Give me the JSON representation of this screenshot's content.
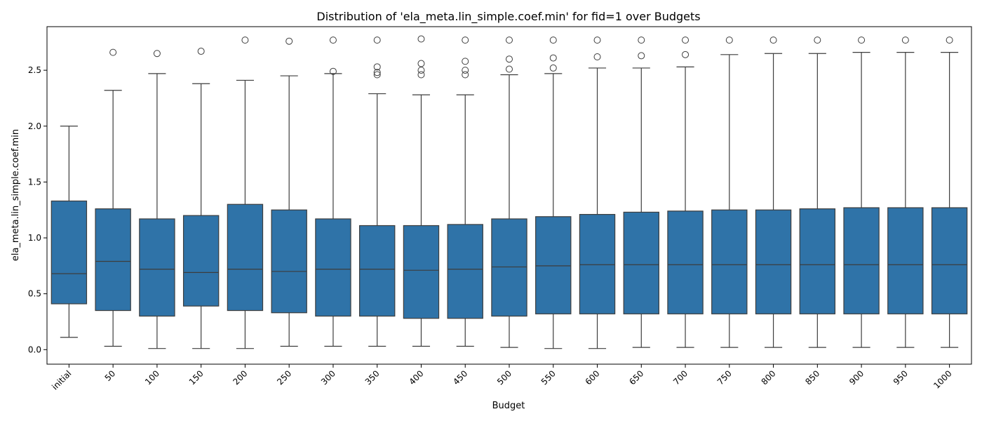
{
  "chart_data": {
    "type": "box",
    "title": "Distribution of 'ela_meta.lin_simple.coef.min' for fid=1 over Budgets",
    "xlabel": "Budget",
    "ylabel": "ela_meta.lin_simple.coef.min",
    "ylim": [
      -0.13,
      2.89
    ],
    "yticks": [
      0.0,
      0.5,
      1.0,
      1.5,
      2.0,
      2.5
    ],
    "ytick_labels": [
      "0.0",
      "0.5",
      "1.0",
      "1.5",
      "2.0",
      "2.5"
    ],
    "grid": false,
    "legend": "none",
    "box_color": "#2f73a8",
    "categories": [
      "initial",
      "50",
      "100",
      "150",
      "200",
      "250",
      "300",
      "350",
      "400",
      "450",
      "500",
      "550",
      "600",
      "650",
      "700",
      "750",
      "800",
      "850",
      "900",
      "950",
      "1000"
    ],
    "boxes": [
      {
        "whisker_low": 0.11,
        "q1": 0.41,
        "median": 0.68,
        "q3": 1.33,
        "whisker_high": 2.0,
        "outliers": []
      },
      {
        "whisker_low": 0.03,
        "q1": 0.35,
        "median": 0.79,
        "q3": 1.26,
        "whisker_high": 2.32,
        "outliers": [
          2.66
        ]
      },
      {
        "whisker_low": 0.01,
        "q1": 0.3,
        "median": 0.72,
        "q3": 1.17,
        "whisker_high": 2.47,
        "outliers": [
          2.65
        ]
      },
      {
        "whisker_low": 0.01,
        "q1": 0.39,
        "median": 0.69,
        "q3": 1.2,
        "whisker_high": 2.38,
        "outliers": [
          2.67
        ]
      },
      {
        "whisker_low": 0.01,
        "q1": 0.35,
        "median": 0.72,
        "q3": 1.3,
        "whisker_high": 2.41,
        "outliers": [
          2.77
        ]
      },
      {
        "whisker_low": 0.03,
        "q1": 0.33,
        "median": 0.7,
        "q3": 1.25,
        "whisker_high": 2.45,
        "outliers": [
          2.76
        ]
      },
      {
        "whisker_low": 0.03,
        "q1": 0.3,
        "median": 0.72,
        "q3": 1.17,
        "whisker_high": 2.47,
        "outliers": [
          2.49,
          2.77
        ]
      },
      {
        "whisker_low": 0.03,
        "q1": 0.3,
        "median": 0.72,
        "q3": 1.11,
        "whisker_high": 2.29,
        "outliers": [
          2.46,
          2.48,
          2.53,
          2.77
        ]
      },
      {
        "whisker_low": 0.03,
        "q1": 0.28,
        "median": 0.71,
        "q3": 1.11,
        "whisker_high": 2.28,
        "outliers": [
          2.46,
          2.5,
          2.56,
          2.78
        ]
      },
      {
        "whisker_low": 0.03,
        "q1": 0.28,
        "median": 0.72,
        "q3": 1.12,
        "whisker_high": 2.28,
        "outliers": [
          2.46,
          2.5,
          2.58,
          2.77
        ]
      },
      {
        "whisker_low": 0.02,
        "q1": 0.3,
        "median": 0.74,
        "q3": 1.17,
        "whisker_high": 2.46,
        "outliers": [
          2.51,
          2.6,
          2.77
        ]
      },
      {
        "whisker_low": 0.01,
        "q1": 0.32,
        "median": 0.75,
        "q3": 1.19,
        "whisker_high": 2.47,
        "outliers": [
          2.52,
          2.61,
          2.77
        ]
      },
      {
        "whisker_low": 0.01,
        "q1": 0.32,
        "median": 0.76,
        "q3": 1.21,
        "whisker_high": 2.52,
        "outliers": [
          2.62,
          2.77
        ]
      },
      {
        "whisker_low": 0.02,
        "q1": 0.32,
        "median": 0.76,
        "q3": 1.23,
        "whisker_high": 2.52,
        "outliers": [
          2.63,
          2.77
        ]
      },
      {
        "whisker_low": 0.02,
        "q1": 0.32,
        "median": 0.76,
        "q3": 1.24,
        "whisker_high": 2.53,
        "outliers": [
          2.64,
          2.77
        ]
      },
      {
        "whisker_low": 0.02,
        "q1": 0.32,
        "median": 0.76,
        "q3": 1.25,
        "whisker_high": 2.64,
        "outliers": [
          2.77
        ]
      },
      {
        "whisker_low": 0.02,
        "q1": 0.32,
        "median": 0.76,
        "q3": 1.25,
        "whisker_high": 2.65,
        "outliers": [
          2.77
        ]
      },
      {
        "whisker_low": 0.02,
        "q1": 0.32,
        "median": 0.76,
        "q3": 1.26,
        "whisker_high": 2.65,
        "outliers": [
          2.77
        ]
      },
      {
        "whisker_low": 0.02,
        "q1": 0.32,
        "median": 0.76,
        "q3": 1.27,
        "whisker_high": 2.66,
        "outliers": [
          2.77
        ]
      },
      {
        "whisker_low": 0.02,
        "q1": 0.32,
        "median": 0.76,
        "q3": 1.27,
        "whisker_high": 2.66,
        "outliers": [
          2.77
        ]
      },
      {
        "whisker_low": 0.02,
        "q1": 0.32,
        "median": 0.76,
        "q3": 1.27,
        "whisker_high": 2.66,
        "outliers": [
          2.77
        ]
      }
    ]
  }
}
